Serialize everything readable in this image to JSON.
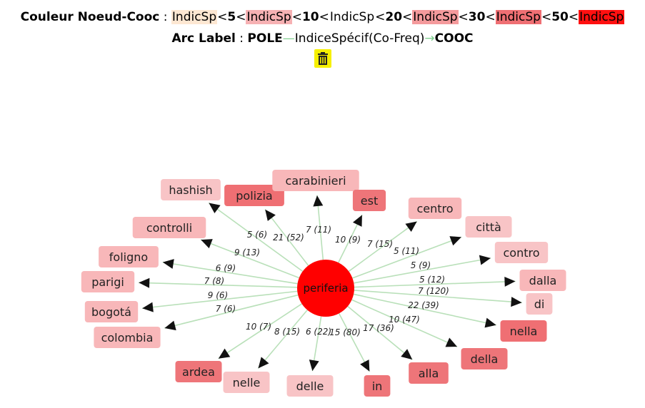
{
  "legend": {
    "title": "Couleur Noeud-Cooc",
    "sep": ":",
    "items": [
      {
        "label": "IndicSp",
        "color": "#fde7d2"
      },
      {
        "op": "<",
        "value": "5"
      },
      {
        "label": "IndicSp",
        "color": "#f6b1b3"
      },
      {
        "op": "<",
        "value": "10"
      },
      {
        "label": "IndicSp",
        "color": "#ffffff"
      },
      {
        "op": "<",
        "value": "20"
      },
      {
        "label": "IndicSp",
        "color": "#f49a9c"
      },
      {
        "op": "<",
        "value": "30"
      },
      {
        "label": "IndicSp",
        "color": "#ef6f73"
      },
      {
        "op": "<",
        "value": "50"
      },
      {
        "label": "IndicSp",
        "color": "#ff1010"
      }
    ]
  },
  "arc_label": {
    "title": "Arc Label",
    "sep": ":",
    "pole": "POLE",
    "middle": "IndiceSpécif(Co-Freq)",
    "cooc": "COOC"
  },
  "graph": {
    "center": {
      "label": "periferia",
      "color": "#ff0000"
    },
    "edge_color": "#b9e0b9",
    "nodes": [
      {
        "label": "hashish",
        "edge": "5 (6)",
        "color": "#f8c4c6"
      },
      {
        "label": "polizia",
        "edge": "21 (52)",
        "color": "#ef6f73"
      },
      {
        "label": "carabinieri",
        "edge": "7 (11)",
        "color": "#f8b7b9"
      },
      {
        "label": "est",
        "edge": "10 (9)",
        "color": "#ee7579"
      },
      {
        "label": "centro",
        "edge": "7 (15)",
        "color": "#f8b7b9"
      },
      {
        "label": "città",
        "edge": "5 (11)",
        "color": "#f8c4c6"
      },
      {
        "label": "controlli",
        "edge": "9 (13)",
        "color": "#f8b7b9"
      },
      {
        "label": "contro",
        "edge": "5 (9)",
        "color": "#f8c4c6"
      },
      {
        "label": "foligno",
        "edge": "6 (9)",
        "color": "#f8b7b9"
      },
      {
        "label": "dalla",
        "edge": "5 (12)",
        "color": "#f8b7b9"
      },
      {
        "label": "parigi",
        "edge": "7 (8)",
        "color": "#f8b7b9"
      },
      {
        "label": "di",
        "edge": "7 (120)",
        "color": "#f8c4c6"
      },
      {
        "label": "bogotá",
        "edge": "9 (6)",
        "color": "#f8b7b9"
      },
      {
        "label": "nella",
        "edge": "22 (39)",
        "color": "#ef6f73"
      },
      {
        "label": "colombia",
        "edge": "7 (6)",
        "color": "#f8b7b9"
      },
      {
        "label": "della",
        "edge": "10 (47)",
        "color": "#ee7579"
      },
      {
        "label": "ardea",
        "edge": "10 (7)",
        "color": "#ee7579"
      },
      {
        "label": "alla",
        "edge": "17 (36)",
        "color": "#ee7579"
      },
      {
        "label": "nelle",
        "edge": "8 (15)",
        "color": "#f8c4c6"
      },
      {
        "label": "in",
        "edge": "15 (80)",
        "color": "#ee7579"
      },
      {
        "label": "delle",
        "edge": "6 (22)",
        "color": "#f8c4c6"
      }
    ]
  },
  "icons": {
    "trash": "trash-icon"
  }
}
